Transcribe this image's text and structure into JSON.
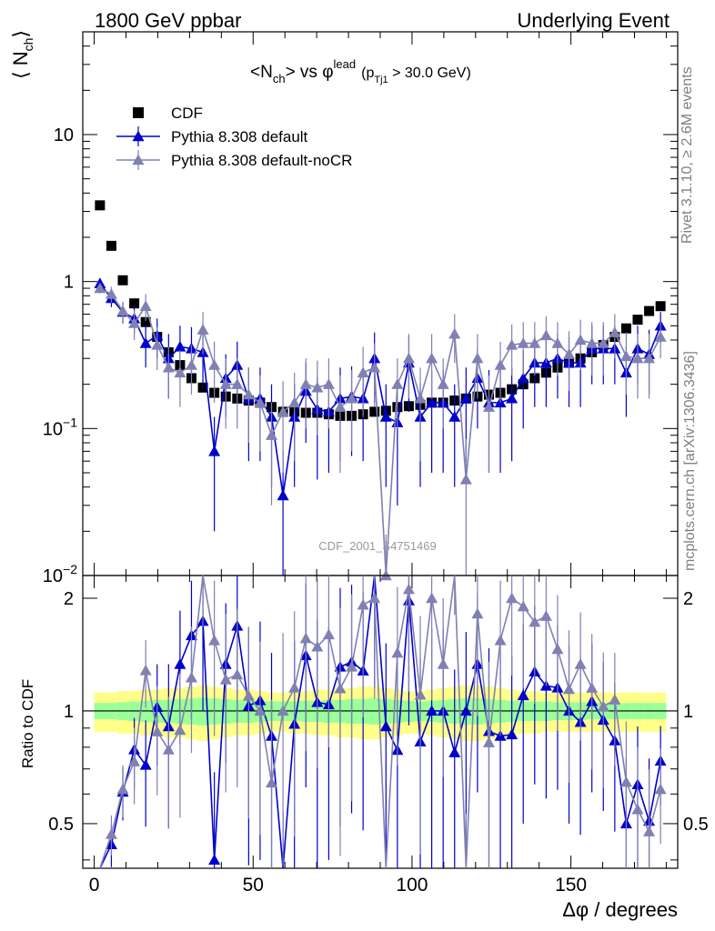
{
  "header": {
    "left": "1800 GeV ppbar",
    "right": "Underlying Event"
  },
  "title": {
    "pre": "<N",
    "sub1": "ch",
    "mid": "> vs ",
    "phi": "φ",
    "sup": "lead",
    "cond_open": "(p",
    "cond_sub": "Tj1",
    "cond_close": " > 30.0 GeV)"
  },
  "ylabel_top": "⟨ N",
  "ylabel_top_sub": "ch",
  "ylabel_top_close": "⟩",
  "ylabel_bottom": "Ratio to CDF",
  "xlabel": "Δφ / degrees",
  "side_text_1": "Rivet 3.1.10, ≥ 2.6M events",
  "side_text_2": "mcplots.cern.ch [arXiv:1306.3436]",
  "watermark": "CDF_2001_S4751469",
  "legend": [
    {
      "name": "CDF",
      "color": "#000000",
      "marker": "square"
    },
    {
      "name": "Pythia 8.308 default",
      "color": "#0000cc",
      "marker": "triangle"
    },
    {
      "name": "Pythia 8.308 default-noCR",
      "color": "#8080b3",
      "marker": "triangle"
    }
  ],
  "top_ticks": {
    "y_major": [
      {
        "value": 10,
        "label": "10"
      },
      {
        "value": 1,
        "label": "1"
      },
      {
        "value": 0.1,
        "label": "10",
        "sup": "−1"
      },
      {
        "value": 0.01,
        "label": "10",
        "sup": "−2"
      }
    ]
  },
  "bottom_ticks": {
    "y_major": [
      {
        "value": 0.5,
        "label": "0.5"
      },
      {
        "value": 1,
        "label": "1"
      },
      {
        "value": 2,
        "label": "2"
      }
    ]
  },
  "x_ticks": [
    {
      "value": 0,
      "label": "0"
    },
    {
      "value": 50,
      "label": "50"
    },
    {
      "value": 100,
      "label": "100"
    },
    {
      "value": 150,
      "label": "150"
    }
  ],
  "chart_data": {
    "type": "scatter",
    "x_range": [
      -3.6,
      183.6
    ],
    "top_y_range": [
      0.01,
      50
    ],
    "top_y_scale": "log",
    "bottom_y_range": [
      0.38,
      2.3
    ],
    "bottom_y_scale": "log",
    "x": [
      1.8,
      5.4,
      9,
      12.6,
      16.2,
      19.8,
      23.4,
      27,
      30.6,
      34.2,
      37.8,
      41.4,
      45,
      48.6,
      52.2,
      55.8,
      59.4,
      63,
      66.6,
      70.2,
      73.8,
      77.4,
      81,
      84.6,
      88.2,
      91.8,
      95.4,
      99,
      102.6,
      106.2,
      109.8,
      113.4,
      117,
      120.6,
      124.2,
      127.8,
      131.4,
      135,
      138.6,
      142.2,
      145.8,
      149.4,
      153,
      156.6,
      160.2,
      163.8,
      167.4,
      171,
      174.6,
      178.2
    ],
    "series": [
      {
        "name": "CDF",
        "values": [
          3.3,
          1.75,
          1.02,
          0.71,
          0.53,
          0.42,
          0.33,
          0.27,
          0.22,
          0.19,
          0.175,
          0.165,
          0.16,
          0.155,
          0.15,
          0.14,
          0.13,
          0.13,
          0.128,
          0.128,
          0.125,
          0.122,
          0.122,
          0.125,
          0.13,
          0.132,
          0.14,
          0.142,
          0.145,
          0.15,
          0.15,
          0.155,
          0.16,
          0.165,
          0.17,
          0.175,
          0.185,
          0.2,
          0.22,
          0.24,
          0.26,
          0.28,
          0.3,
          0.33,
          0.37,
          0.42,
          0.48,
          0.55,
          0.63,
          0.68
        ],
        "errors": [
          0.05,
          0.03,
          0.02,
          0.012,
          0.01,
          0.008,
          0.006,
          0.005,
          0.004,
          0.004,
          0.003,
          0.003,
          0.003,
          0.003,
          0.003,
          0.003,
          0.003,
          0.003,
          0.003,
          0.003,
          0.003,
          0.003,
          0.003,
          0.003,
          0.003,
          0.003,
          0.003,
          0.003,
          0.003,
          0.003,
          0.003,
          0.003,
          0.003,
          0.003,
          0.003,
          0.003,
          0.004,
          0.004,
          0.004,
          0.005,
          0.005,
          0.005,
          0.006,
          0.006,
          0.007,
          0.008,
          0.009,
          0.01,
          0.012,
          0.013
        ]
      },
      {
        "name": "Pythia 8.308 default",
        "values": [
          0.97,
          0.77,
          0.62,
          0.56,
          0.38,
          0.43,
          0.3,
          0.36,
          0.35,
          0.33,
          0.07,
          0.22,
          0.27,
          0.16,
          0.16,
          0.12,
          0.035,
          0.12,
          0.18,
          0.135,
          0.13,
          0.16,
          0.165,
          0.16,
          0.3,
          0.12,
          0.11,
          0.28,
          0.12,
          0.15,
          0.15,
          0.12,
          0.16,
          0.22,
          0.15,
          0.15,
          0.16,
          0.22,
          0.28,
          0.28,
          0.3,
          0.28,
          0.28,
          0.35,
          0.35,
          0.35,
          0.24,
          0.35,
          0.32,
          0.5
        ],
        "errors": [
          0.07,
          0.1,
          0.1,
          0.12,
          0.12,
          0.13,
          0.14,
          0.14,
          0.14,
          0.14,
          0.05,
          0.1,
          0.12,
          0.1,
          0.1,
          0.08,
          0.035,
          0.08,
          0.1,
          0.09,
          0.08,
          0.1,
          0.1,
          0.1,
          0.15,
          0.08,
          0.08,
          0.15,
          0.08,
          0.1,
          0.1,
          0.08,
          0.1,
          0.12,
          0.1,
          0.1,
          0.1,
          0.12,
          0.14,
          0.14,
          0.14,
          0.14,
          0.14,
          0.15,
          0.15,
          0.15,
          0.12,
          0.15,
          0.15,
          0.12
        ]
      },
      {
        "name": "Pythia 8.308 default-noCR",
        "values": [
          0.9,
          0.82,
          0.63,
          0.52,
          0.68,
          0.37,
          0.26,
          0.24,
          0.27,
          0.47,
          0.27,
          0.2,
          0.2,
          0.17,
          0.15,
          0.09,
          0.13,
          0.15,
          0.2,
          0.19,
          0.2,
          0.14,
          0.16,
          0.24,
          0.26,
          0.01,
          0.2,
          0.3,
          0.16,
          0.3,
          0.2,
          0.44,
          0.045,
          0.3,
          0.14,
          0.27,
          0.37,
          0.38,
          0.38,
          0.43,
          0.38,
          0.32,
          0.4,
          0.38,
          0.38,
          0.45,
          0.31,
          0.3,
          0.3,
          0.42
        ],
        "errors": [
          0.07,
          0.1,
          0.1,
          0.12,
          0.14,
          0.12,
          0.1,
          0.1,
          0.1,
          0.15,
          0.12,
          0.1,
          0.1,
          0.09,
          0.08,
          0.06,
          0.08,
          0.09,
          0.1,
          0.1,
          0.1,
          0.09,
          0.09,
          0.12,
          0.12,
          0.009,
          0.1,
          0.14,
          0.1,
          0.14,
          0.1,
          0.16,
          0.04,
          0.14,
          0.09,
          0.12,
          0.14,
          0.15,
          0.15,
          0.15,
          0.15,
          0.14,
          0.15,
          0.15,
          0.15,
          0.15,
          0.14,
          0.14,
          0.14,
          0.12
        ]
      }
    ],
    "ratio_bands": {
      "inner_color": "#99ff99",
      "outer_color": "#ffff88",
      "inner": [
        0.05,
        0.05,
        0.055,
        0.06,
        0.065,
        0.07,
        0.07,
        0.075,
        0.08,
        0.085,
        0.08,
        0.075,
        0.07,
        0.07,
        0.065,
        0.06,
        0.06,
        0.06,
        0.065,
        0.065,
        0.07,
        0.07,
        0.075,
        0.075,
        0.08,
        0.075,
        0.07,
        0.065,
        0.06,
        0.065,
        0.07,
        0.075,
        0.08,
        0.08,
        0.075,
        0.07,
        0.065,
        0.06,
        0.06,
        0.06,
        0.055,
        0.055,
        0.055,
        0.05,
        0.05,
        0.05,
        0.05,
        0.05,
        0.05,
        0.05
      ],
      "outer": [
        0.12,
        0.12,
        0.13,
        0.13,
        0.14,
        0.14,
        0.15,
        0.15,
        0.16,
        0.17,
        0.16,
        0.15,
        0.14,
        0.14,
        0.13,
        0.12,
        0.12,
        0.13,
        0.13,
        0.14,
        0.14,
        0.15,
        0.15,
        0.16,
        0.16,
        0.15,
        0.14,
        0.13,
        0.13,
        0.14,
        0.15,
        0.16,
        0.17,
        0.17,
        0.16,
        0.15,
        0.14,
        0.13,
        0.13,
        0.12,
        0.12,
        0.12,
        0.12,
        0.12,
        0.12,
        0.12,
        0.12,
        0.12,
        0.12,
        0.12
      ]
    },
    "grid": false,
    "legend_position": "top-left"
  }
}
